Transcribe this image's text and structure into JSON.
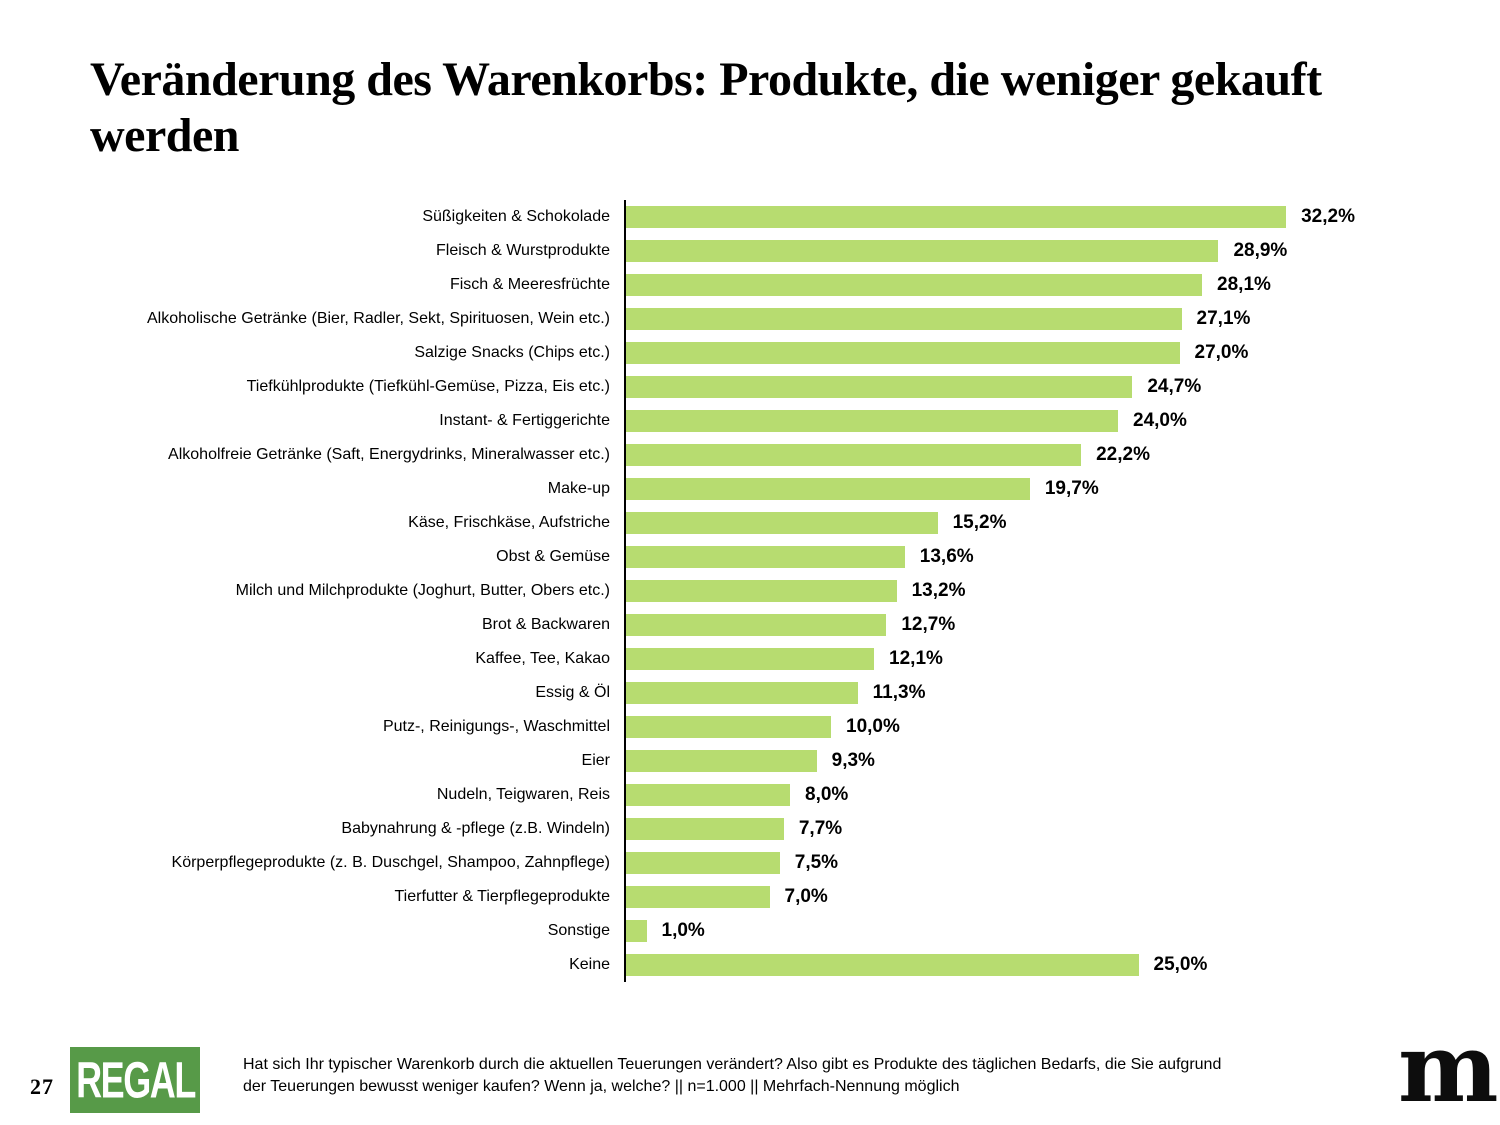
{
  "page": {
    "title": "Veränderung des Warenkorbs: Produkte, die weniger gekauft werden",
    "page_number": "27"
  },
  "footer": {
    "logo_left_text": "REGAL",
    "question_line1": "Hat sich Ihr typischer Warenkorb durch die aktuellen Teuerungen verändert? Also gibt es Produkte des täglichen Bedarfs, die Sie aufgrund",
    "question_line2": "der Teuerungen bewusst weniger kaufen? Wenn ja, welche? || n=1.000 || Mehrfach-Nennung möglich",
    "logo_right_letter": "m"
  },
  "colors": {
    "bar": "#b7dc70",
    "regal_green": "#579a48",
    "logo_dot": "#b6d26e",
    "axis": "#000000"
  },
  "chart_data": {
    "type": "bar",
    "orientation": "horizontal",
    "title": "Veränderung des Warenkorbs: Produkte, die weniger gekauft werden",
    "unit": "percent",
    "xlim": [
      0,
      35
    ],
    "grid": false,
    "categories": [
      "Süßigkeiten & Schokolade",
      "Fleisch & Wurstprodukte",
      "Fisch & Meeresfrüchte",
      "Alkoholische Getränke (Bier, Radler, Sekt, Spirituosen, Wein etc.)",
      "Salzige Snacks (Chips etc.)",
      "Tiefkühlprodukte (Tiefkühl-Gemüse, Pizza, Eis etc.)",
      "Instant- & Fertiggerichte",
      "Alkoholfreie Getränke (Saft, Energydrinks, Mineralwasser etc.)",
      "Make-up",
      "Käse, Frischkäse, Aufstriche",
      "Obst & Gemüse",
      "Milch und Milchprodukte (Joghurt, Butter, Obers etc.)",
      "Brot & Backwaren",
      "Kaffee, Tee, Kakao",
      "Essig & Öl",
      "Putz-, Reinigungs-, Waschmittel",
      "Eier",
      "Nudeln, Teigwaren, Reis",
      "Babynahrung & -pflege (z.B. Windeln)",
      "Körperpflegeprodukte (z. B. Duschgel, Shampoo, Zahnpflege)",
      "Tierfutter & Tierpflegeprodukte",
      "Sonstige",
      "Keine"
    ],
    "values": [
      32.2,
      28.9,
      28.1,
      27.1,
      27.0,
      24.7,
      24.0,
      22.2,
      19.7,
      15.2,
      13.6,
      13.2,
      12.7,
      12.1,
      11.3,
      10.0,
      9.3,
      8.0,
      7.7,
      7.5,
      7.0,
      1.0,
      25.0
    ],
    "value_labels": [
      "32,2%",
      "28,9%",
      "28,1%",
      "27,1%",
      "27,0%",
      "24,7%",
      "24,0%",
      "22,2%",
      "19,7%",
      "15,2%",
      "13,6%",
      "13,2%",
      "12,7%",
      "12,1%",
      "11,3%",
      "10,0%",
      "9,3%",
      "8,0%",
      "7,7%",
      "7,5%",
      "7,0%",
      "1,0%",
      "25,0%"
    ]
  }
}
